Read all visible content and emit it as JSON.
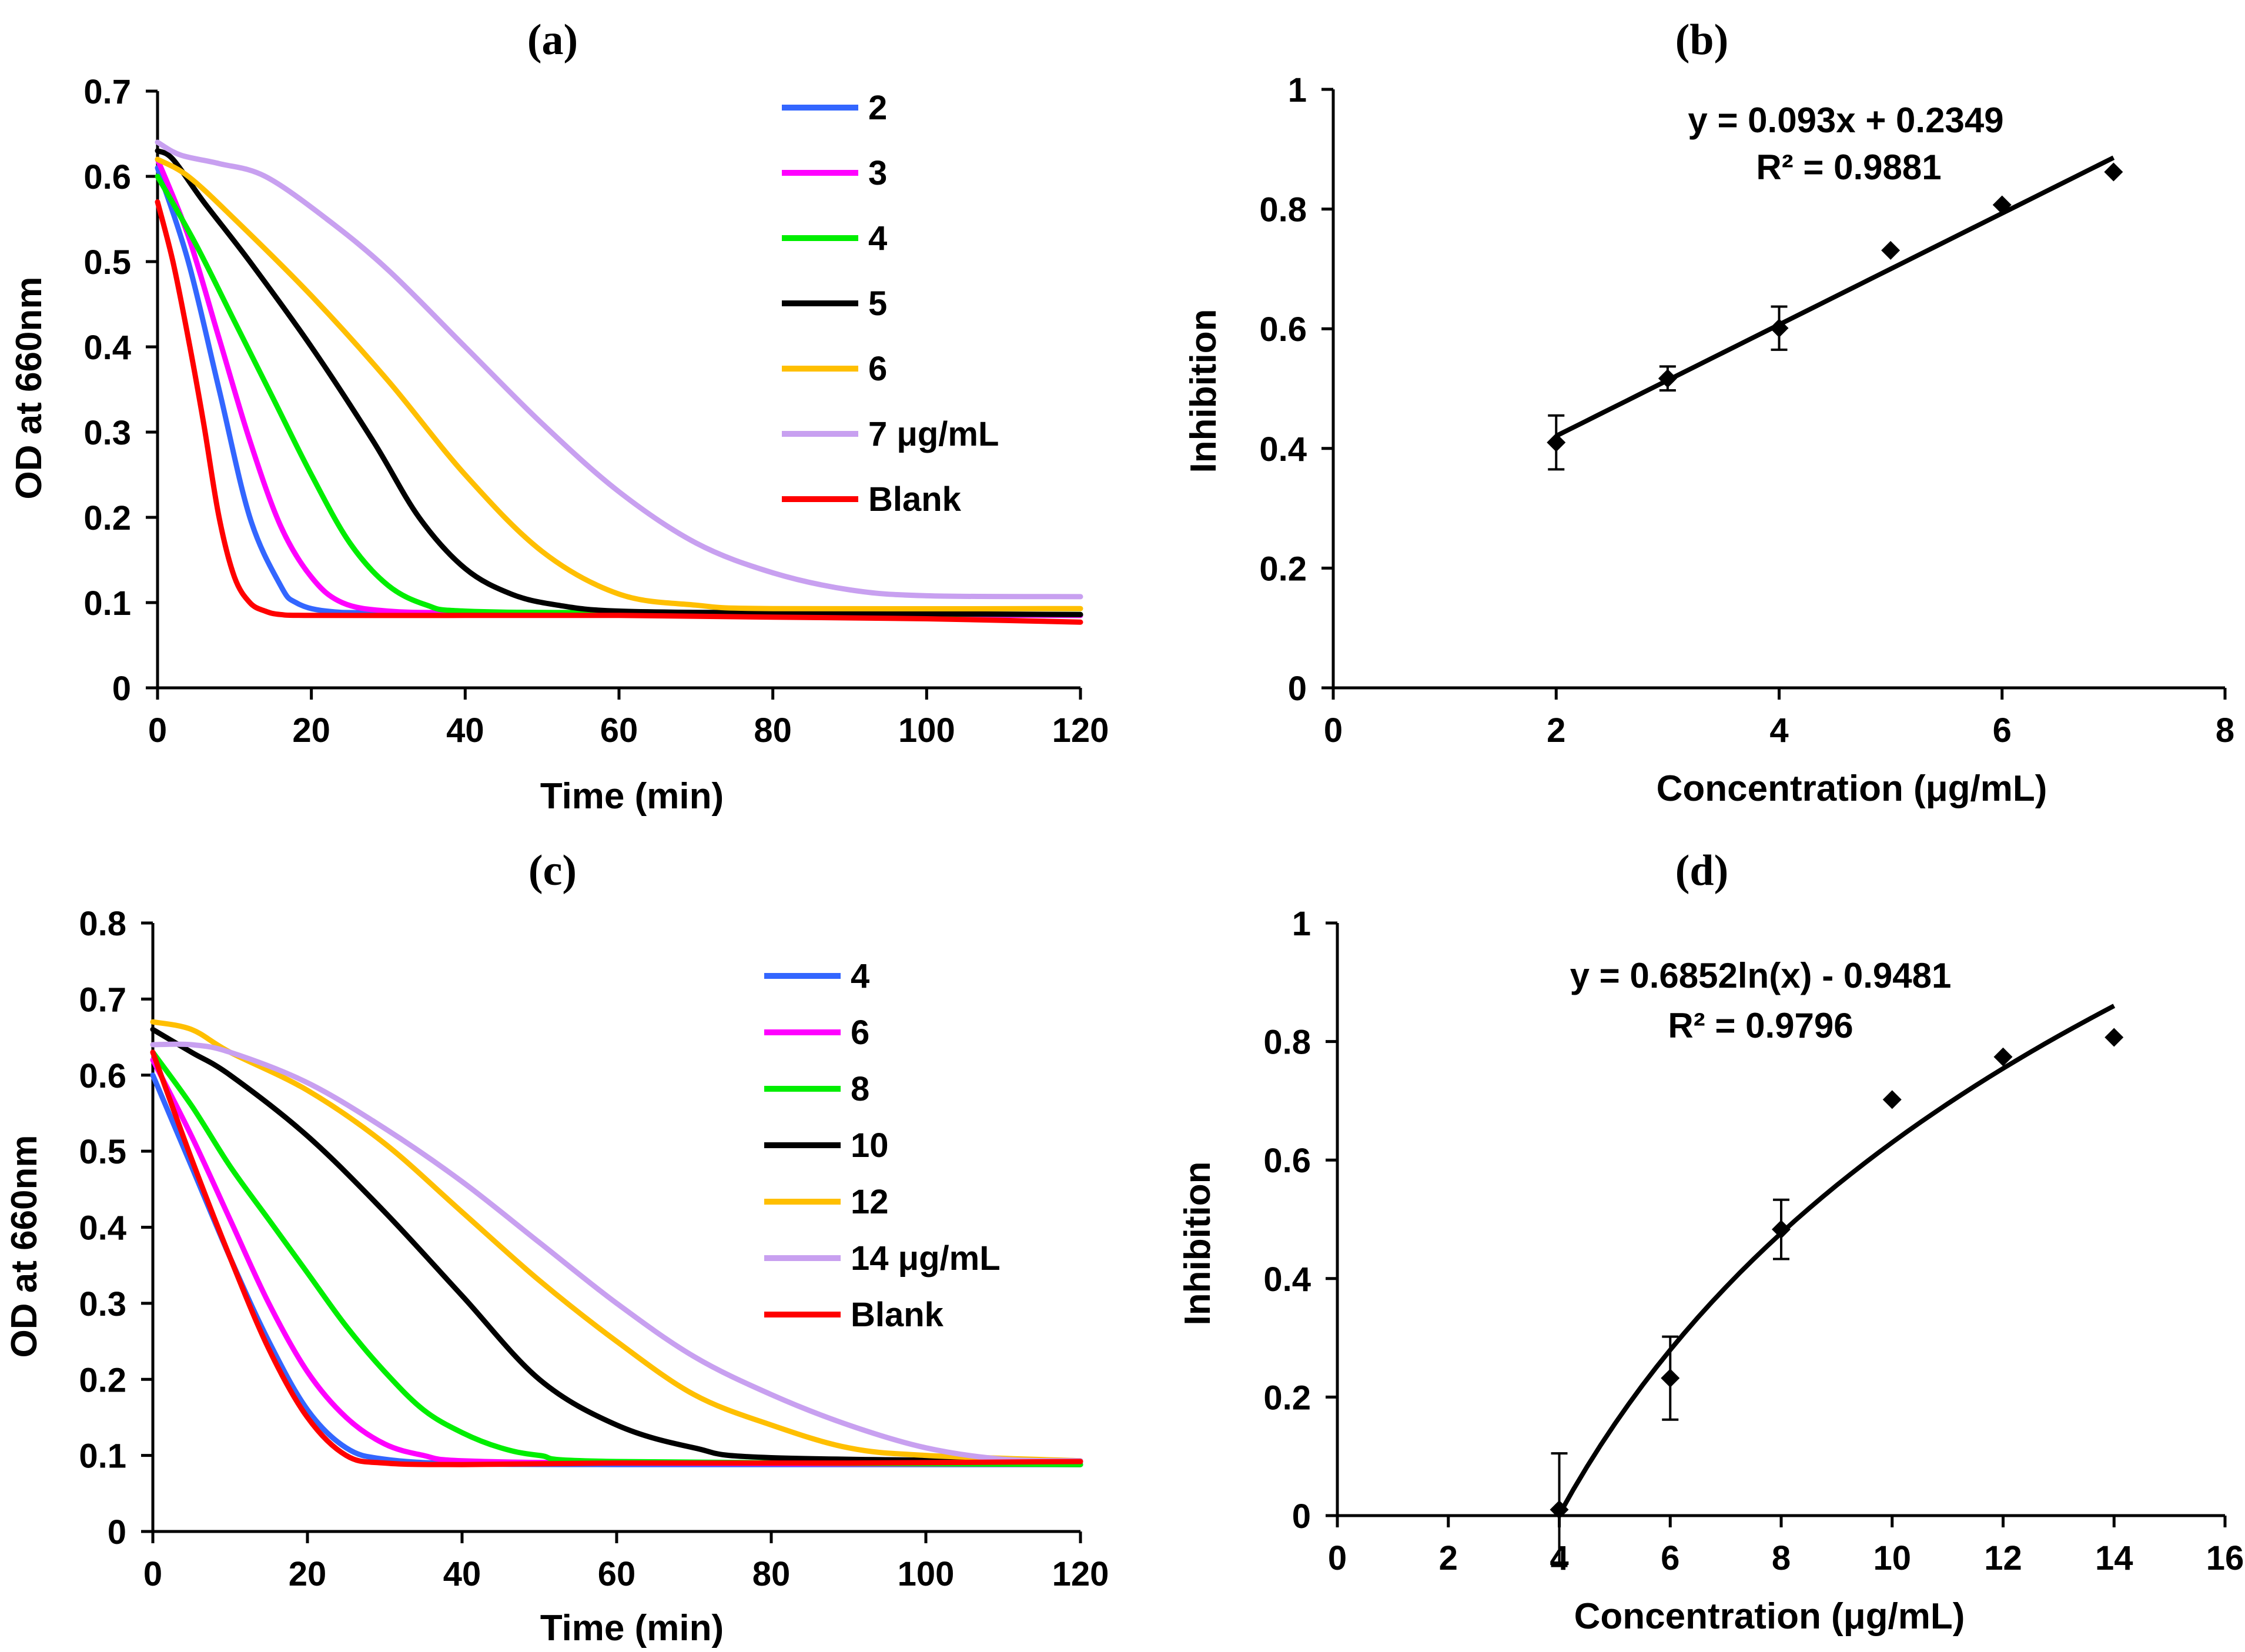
{
  "chart_data": [
    {
      "id": "a",
      "type": "line",
      "panel_label": "(a)",
      "xlabel": "Time (min)",
      "ylabel": "OD at 660nm",
      "xlim": [
        0,
        120
      ],
      "ylim": [
        0,
        0.7
      ],
      "xticks": [
        "0",
        "20",
        "40",
        "60",
        "80",
        "100",
        "120"
      ],
      "yticks": [
        "0",
        "0.1",
        "0.2",
        "0.3",
        "0.4",
        "0.5",
        "0.6",
        "0.7"
      ],
      "legend_position": "top-right",
      "series": [
        {
          "name": "2",
          "color": "#3366ff",
          "x": [
            0,
            4,
            8,
            12,
            16,
            18,
            22,
            30,
            60,
            90,
            120
          ],
          "values": [
            0.61,
            0.5,
            0.35,
            0.2,
            0.12,
            0.1,
            0.09,
            0.088,
            0.087,
            0.086,
            0.085
          ]
        },
        {
          "name": "3",
          "color": "#ff00ff",
          "x": [
            0,
            4,
            8,
            12,
            16,
            20,
            24,
            30,
            40,
            60,
            120
          ],
          "values": [
            0.62,
            0.53,
            0.41,
            0.29,
            0.19,
            0.13,
            0.1,
            0.09,
            0.088,
            0.087,
            0.085
          ]
        },
        {
          "name": "4",
          "color": "#00ee00",
          "x": [
            0,
            5,
            10,
            15,
            20,
            25,
            30,
            35,
            40,
            60,
            120
          ],
          "values": [
            0.6,
            0.52,
            0.43,
            0.34,
            0.25,
            0.17,
            0.12,
            0.097,
            0.09,
            0.088,
            0.086
          ]
        },
        {
          "name": "5",
          "color": "#000000",
          "x": [
            0,
            2,
            6,
            12,
            20,
            28,
            34,
            40,
            46,
            52,
            60,
            80,
            120
          ],
          "values": [
            0.63,
            0.62,
            0.57,
            0.5,
            0.4,
            0.29,
            0.2,
            0.14,
            0.11,
            0.097,
            0.09,
            0.088,
            0.086
          ]
        },
        {
          "name": "6",
          "color": "#ffbf00",
          "x": [
            0,
            4,
            10,
            20,
            30,
            40,
            50,
            60,
            70,
            80,
            120
          ],
          "values": [
            0.62,
            0.6,
            0.55,
            0.46,
            0.36,
            0.25,
            0.16,
            0.11,
            0.097,
            0.093,
            0.093
          ]
        },
        {
          "name": "7 μg/mL",
          "color": "#c8a0f0",
          "x": [
            0,
            3,
            8,
            14,
            22,
            30,
            40,
            50,
            60,
            70,
            80,
            90,
            100,
            120
          ],
          "values": [
            0.64,
            0.625,
            0.615,
            0.6,
            0.55,
            0.49,
            0.4,
            0.31,
            0.23,
            0.17,
            0.135,
            0.115,
            0.108,
            0.107
          ]
        },
        {
          "name": "Blank",
          "color": "#ff0000",
          "x": [
            0,
            2,
            4,
            6,
            8,
            10,
            12,
            14,
            16,
            20,
            40,
            60,
            80,
            100,
            120
          ],
          "values": [
            0.57,
            0.5,
            0.41,
            0.31,
            0.2,
            0.13,
            0.1,
            0.09,
            0.086,
            0.085,
            0.085,
            0.085,
            0.083,
            0.081,
            0.077
          ]
        }
      ]
    },
    {
      "id": "b",
      "type": "scatter",
      "panel_label": "(b)",
      "xlabel": "Concentration (μg/mL)",
      "ylabel": "Inhibition",
      "xlim": [
        0,
        8
      ],
      "ylim": [
        0,
        1
      ],
      "xticks": [
        "0",
        "2",
        "4",
        "6",
        "8"
      ],
      "yticks": [
        "0",
        "0.2",
        "0.4",
        "0.6",
        "0.8",
        "1"
      ],
      "x": [
        2,
        3,
        4,
        5,
        6,
        7
      ],
      "values": [
        0.41,
        0.517,
        0.601,
        0.731,
        0.807,
        0.862
      ],
      "error": [
        0.045,
        0.02,
        0.036,
        0,
        0,
        0
      ],
      "trendline": {
        "kind": "linear",
        "slope": 0.093,
        "intercept": 0.2349,
        "x_range": [
          2,
          7
        ]
      },
      "equation_label": "y = 0.093x + 0.2349",
      "r2_label": "R² = 0.9881"
    },
    {
      "id": "c",
      "type": "line",
      "panel_label": "(c)",
      "xlabel": "Time (min)",
      "ylabel": "OD at 660nm",
      "xlim": [
        0,
        120
      ],
      "ylim": [
        0,
        0.8
      ],
      "xticks": [
        "0",
        "20",
        "40",
        "60",
        "80",
        "100",
        "120"
      ],
      "yticks": [
        "0",
        "0.1",
        "0.2",
        "0.3",
        "0.4",
        "0.5",
        "0.6",
        "0.7",
        "0.8"
      ],
      "legend_position": "top-right",
      "series": [
        {
          "name": "4",
          "color": "#3366ff",
          "x": [
            0,
            5,
            10,
            15,
            20,
            25,
            30,
            40,
            60,
            90,
            120
          ],
          "values": [
            0.6,
            0.48,
            0.36,
            0.25,
            0.16,
            0.11,
            0.095,
            0.089,
            0.088,
            0.088,
            0.088
          ]
        },
        {
          "name": "6",
          "color": "#ff00ff",
          "x": [
            0,
            5,
            10,
            15,
            20,
            25,
            30,
            35,
            40,
            60,
            120
          ],
          "values": [
            0.62,
            0.52,
            0.41,
            0.3,
            0.21,
            0.15,
            0.115,
            0.1,
            0.093,
            0.09,
            0.088
          ]
        },
        {
          "name": "8",
          "color": "#00ee00",
          "x": [
            0,
            5,
            10,
            15,
            20,
            25,
            30,
            35,
            40,
            45,
            50,
            60,
            120
          ],
          "values": [
            0.63,
            0.56,
            0.48,
            0.41,
            0.34,
            0.27,
            0.21,
            0.16,
            0.13,
            0.11,
            0.1,
            0.092,
            0.088
          ]
        },
        {
          "name": "10",
          "color": "#000000",
          "x": [
            0,
            5,
            10,
            20,
            30,
            40,
            50,
            60,
            70,
            80,
            120
          ],
          "values": [
            0.66,
            0.63,
            0.6,
            0.52,
            0.42,
            0.31,
            0.2,
            0.14,
            0.11,
            0.097,
            0.092
          ]
        },
        {
          "name": "12",
          "color": "#ffbf00",
          "x": [
            0,
            5,
            10,
            20,
            30,
            40,
            50,
            60,
            70,
            80,
            90,
            100,
            120
          ],
          "values": [
            0.67,
            0.66,
            0.63,
            0.58,
            0.51,
            0.42,
            0.33,
            0.25,
            0.18,
            0.14,
            0.11,
            0.1,
            0.093
          ]
        },
        {
          "name": "14 μg/mL",
          "color": "#c8a0f0",
          "x": [
            0,
            5,
            10,
            20,
            30,
            40,
            50,
            60,
            70,
            80,
            90,
            100,
            110,
            120
          ],
          "values": [
            0.64,
            0.64,
            0.63,
            0.59,
            0.53,
            0.46,
            0.38,
            0.3,
            0.23,
            0.18,
            0.14,
            0.11,
            0.095,
            0.093
          ]
        },
        {
          "name": "Blank",
          "color": "#ff0000",
          "x": [
            0,
            5,
            10,
            15,
            20,
            25,
            30,
            40,
            60,
            90,
            120
          ],
          "values": [
            0.63,
            0.49,
            0.36,
            0.24,
            0.15,
            0.1,
            0.09,
            0.088,
            0.09,
            0.09,
            0.092
          ]
        }
      ]
    },
    {
      "id": "d",
      "type": "scatter",
      "panel_label": "(d)",
      "xlabel": "Concentration (μg/mL)",
      "ylabel": "Inhibition",
      "xlim": [
        0,
        16
      ],
      "ylim": [
        0,
        1
      ],
      "xticks": [
        "0",
        "2",
        "4",
        "6",
        "8",
        "10",
        "12",
        "14",
        "16"
      ],
      "yticks": [
        "0",
        "0.2",
        "0.4",
        "0.6",
        "0.8",
        "1"
      ],
      "x": [
        4,
        6,
        8,
        10,
        12,
        14
      ],
      "values": [
        0.01,
        0.232,
        0.483,
        0.702,
        0.774,
        0.807
      ],
      "error": [
        0.095,
        0.07,
        0.05,
        0,
        0,
        0
      ],
      "trendline": {
        "kind": "log",
        "a": 0.6852,
        "b": -0.9481,
        "x_range": [
          4,
          14
        ]
      },
      "equation_label": "y = 0.6852ln(x) - 0.9481",
      "r2_label": "R² = 0.9796"
    }
  ]
}
